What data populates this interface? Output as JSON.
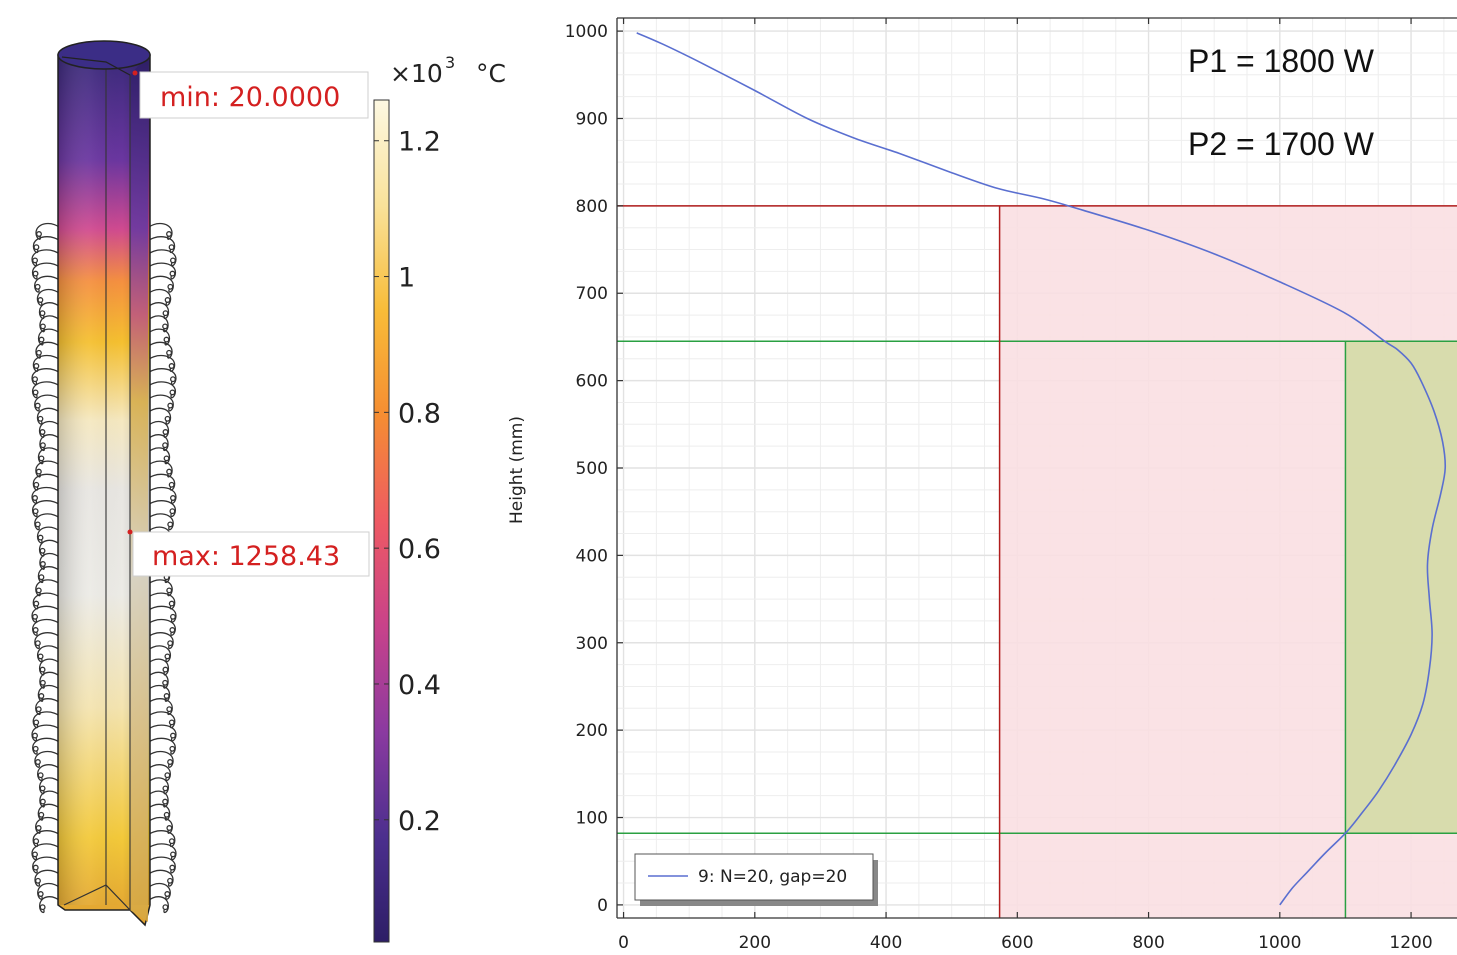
{
  "model_view": {
    "min_label": "min: 20.0000",
    "max_label": "max: 1258.43"
  },
  "colorbar": {
    "multiplier": "×10",
    "exponent": "3",
    "unit": "°C",
    "range": [
      0.02,
      1.26
    ],
    "ticks": [
      0.2,
      0.4,
      0.6,
      0.8,
      1,
      1.2
    ],
    "tick_labels": [
      "0.2",
      "0.4",
      "0.6",
      "0.8",
      "1",
      "1.2"
    ],
    "colors": [
      "#2d1e66",
      "#4c2f8e",
      "#8b3aa0",
      "#c8428a",
      "#ee5a63",
      "#f58d32",
      "#f8bc38",
      "#f9e29a",
      "#fdf8e2"
    ]
  },
  "chart_data": {
    "type": "line",
    "title": "",
    "xlabel": "",
    "ylabel": "Height (mm)",
    "xlim": [
      -10,
      1270
    ],
    "ylim": [
      -15,
      1015
    ],
    "x_ticks": [
      0,
      200,
      400,
      600,
      800,
      1000,
      1200
    ],
    "y_ticks": [
      0,
      100,
      200,
      300,
      400,
      500,
      600,
      700,
      800,
      900,
      1000
    ],
    "x_tick_labels": [
      "0",
      "200",
      "400",
      "600",
      "800",
      "1000",
      "1200"
    ],
    "y_tick_labels": [
      "0",
      "100",
      "200",
      "300",
      "400",
      "500",
      "600",
      "700",
      "800",
      "900",
      "1000"
    ],
    "grid": true,
    "legend_position": "bottom-left",
    "series": [
      {
        "name": "9: N=20, gap=20",
        "color": "#5a6fd0",
        "points": [
          [
            1000,
            0
          ],
          [
            1020,
            20
          ],
          [
            1045,
            40
          ],
          [
            1070,
            60
          ],
          [
            1100,
            82
          ],
          [
            1125,
            105
          ],
          [
            1150,
            130
          ],
          [
            1175,
            160
          ],
          [
            1200,
            195
          ],
          [
            1218,
            230
          ],
          [
            1228,
            270
          ],
          [
            1232,
            310
          ],
          [
            1228,
            350
          ],
          [
            1225,
            390
          ],
          [
            1232,
            430
          ],
          [
            1245,
            470
          ],
          [
            1252,
            500
          ],
          [
            1248,
            530
          ],
          [
            1235,
            565
          ],
          [
            1215,
            600
          ],
          [
            1200,
            620
          ],
          [
            1180,
            635
          ],
          [
            1160,
            645
          ],
          [
            1100,
            677
          ],
          [
            1000,
            713
          ],
          [
            900,
            745
          ],
          [
            800,
            772
          ],
          [
            700,
            795
          ],
          [
            640,
            808
          ],
          [
            570,
            820
          ],
          [
            500,
            838
          ],
          [
            420,
            860
          ],
          [
            350,
            878
          ],
          [
            280,
            900
          ],
          [
            200,
            932
          ],
          [
            120,
            963
          ],
          [
            60,
            985
          ],
          [
            20,
            998
          ]
        ]
      }
    ],
    "reference_lines": {
      "horizontal": [
        {
          "y": 800,
          "color": "#b01c1c"
        },
        {
          "y": 645,
          "color": "#2aa042"
        },
        {
          "y": 82,
          "color": "#2aa042"
        }
      ],
      "vertical": [
        {
          "x": 573,
          "color": "#b01c1c"
        },
        {
          "x": 1100,
          "color": "#2aa042"
        }
      ]
    },
    "regions": [
      {
        "x_from": 573,
        "y_from": -15,
        "y_to": 800,
        "color": "#f9dfe2"
      },
      {
        "x_from": 1100,
        "y_from": 82,
        "y_to": 645,
        "color": "#d4dca6"
      }
    ],
    "annotations": [
      "P1 = 1800 W",
      "P2 = 1700 W"
    ]
  }
}
